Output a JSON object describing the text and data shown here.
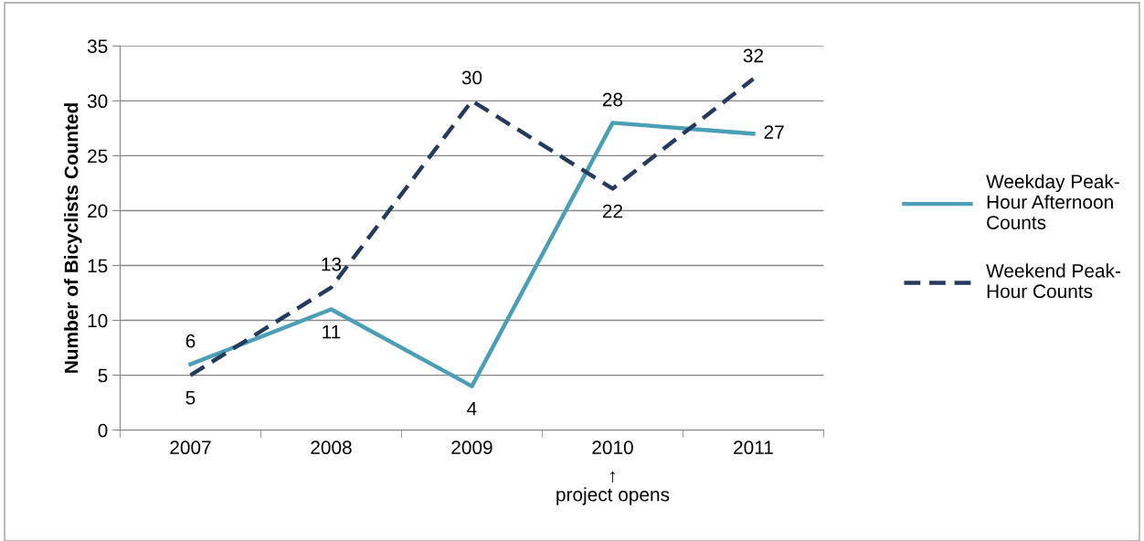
{
  "chart_data": {
    "type": "line",
    "ylabel": "Number of Bicyclists Counted",
    "categories": [
      "2007",
      "2008",
      "2009",
      "2010",
      "2011"
    ],
    "series": [
      {
        "name": "Weekday Peak-Hour Afternoon Counts",
        "color": "#4a9eb5",
        "values": [
          6,
          11,
          4,
          28,
          27
        ],
        "line_style": "solid"
      },
      {
        "name": "Weekend Peak-Hour Counts",
        "color": "#253a5c",
        "values": [
          5,
          13,
          30,
          22,
          32
        ],
        "line_style": "dashed"
      }
    ],
    "ylim": [
      0,
      35
    ],
    "yticks": [
      0,
      5,
      10,
      15,
      20,
      25,
      30,
      35
    ],
    "grid": "y",
    "legend": "right",
    "data_labels": true,
    "marker": "none",
    "annotations": [
      "↑\nproject opens"
    ]
  }
}
